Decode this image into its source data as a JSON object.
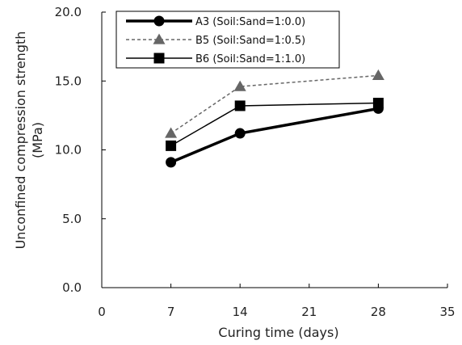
{
  "chart_data": {
    "type": "line",
    "xlabel": "Curing time (days)",
    "ylabel": "Unconfined compression strength (MPa)",
    "ylabel_lines": [
      "Unconfined compression strength",
      "(MPa)"
    ],
    "xlim": [
      0,
      35
    ],
    "ylim": [
      0,
      20
    ],
    "x_ticks": [
      0,
      7,
      14,
      21,
      28,
      35
    ],
    "y_ticks": [
      0,
      5,
      10,
      15,
      20
    ],
    "y_tick_labels": [
      "0.0",
      "5.0",
      "10.0",
      "15.0",
      "20.0"
    ],
    "x_tick_labels": [
      "0",
      "7",
      "14",
      "21",
      "28",
      "35"
    ],
    "grid": false,
    "legend_position": "top-left",
    "series": [
      {
        "name": "A3 (Soil:Sand=1:0.0)",
        "x": [
          7,
          14,
          28
        ],
        "y": [
          9.1,
          11.2,
          13.0
        ],
        "marker": "circle",
        "line": "solid-thick",
        "color": "#000000"
      },
      {
        "name": "B5 (Soil:Sand=1:0.5)",
        "x": [
          7,
          14,
          28
        ],
        "y": [
          11.2,
          14.6,
          15.4
        ],
        "marker": "triangle",
        "line": "dashed",
        "color": "#666666"
      },
      {
        "name": "B6 (Soil:Sand=1:1.0)",
        "x": [
          7,
          14,
          28
        ],
        "y": [
          10.3,
          13.2,
          13.4
        ],
        "marker": "square",
        "line": "solid",
        "color": "#000000"
      }
    ]
  }
}
